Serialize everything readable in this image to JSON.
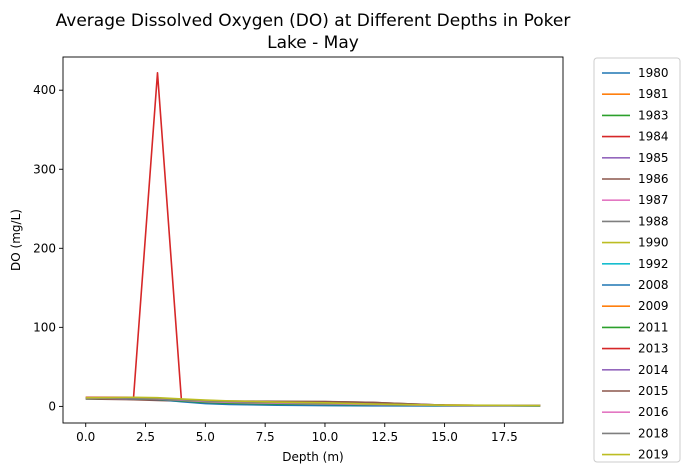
{
  "chart_data": {
    "type": "line",
    "title_lines": [
      "Average Dissolved Oxygen (DO) at Different Depths in Poker",
      "Lake - May"
    ],
    "xlabel": "Depth (m)",
    "ylabel": "DO (mg/L)",
    "xlim": [
      -0.95,
      19.95
    ],
    "ylim": [
      -21,
      442
    ],
    "xticks": [
      0.0,
      2.5,
      5.0,
      7.5,
      10.0,
      12.5,
      15.0,
      17.5
    ],
    "xtick_labels": [
      "0.0",
      "2.5",
      "5.0",
      "7.5",
      "10.0",
      "12.5",
      "15.0",
      "17.5"
    ],
    "yticks": [
      0,
      100,
      200,
      300,
      400
    ],
    "ytick_labels": [
      "0",
      "100",
      "200",
      "300",
      "400"
    ],
    "grid": false,
    "legend_position": "outside-right",
    "series": [
      {
        "name": "1980",
        "color": "#1f77b4",
        "x": [
          0,
          1,
          2,
          3,
          4,
          5,
          6,
          8,
          10,
          12,
          15,
          19
        ],
        "y": [
          10.5,
          10.2,
          9.8,
          9.0,
          6.5,
          4.0,
          3.0,
          2.0,
          1.5,
          1.2,
          1.0,
          0.8
        ]
      },
      {
        "name": "1981",
        "color": "#ff7f0e",
        "x": [
          0,
          1,
          2,
          3,
          4,
          5,
          6,
          8,
          10,
          12,
          15,
          19
        ],
        "y": [
          11.0,
          10.8,
          10.5,
          10.0,
          8.5,
          7.0,
          6.0,
          5.0,
          4.0,
          3.0,
          1.5,
          1.0
        ]
      },
      {
        "name": "1983",
        "color": "#2ca02c",
        "x": [
          0,
          1,
          2,
          3,
          4,
          5,
          6,
          8,
          10,
          12,
          15,
          19
        ],
        "y": [
          10.0,
          9.8,
          9.5,
          9.0,
          7.0,
          5.0,
          4.0,
          3.0,
          2.5,
          2.0,
          1.2,
          0.8
        ]
      },
      {
        "name": "1984",
        "color": "#d62728",
        "x": [
          0,
          1,
          2,
          3,
          4,
          5,
          6,
          8,
          10,
          12,
          15,
          19
        ],
        "y": [
          10.2,
          10.0,
          9.7,
          9.2,
          7.5,
          5.5,
          4.5,
          3.5,
          2.8,
          2.0,
          1.3,
          0.9
        ]
      },
      {
        "name": "1985",
        "color": "#9467bd",
        "x": [
          0,
          1,
          2,
          3,
          4,
          5,
          6,
          8,
          10,
          12,
          15,
          19
        ],
        "y": [
          10.8,
          10.5,
          10.2,
          9.8,
          8.0,
          6.5,
          5.5,
          4.5,
          3.5,
          2.5,
          1.4,
          1.0
        ]
      },
      {
        "name": "1986",
        "color": "#8c564b",
        "x": [
          0,
          1,
          2,
          3,
          4,
          5,
          6,
          8,
          10,
          12,
          15,
          19
        ],
        "y": [
          9.5,
          9.0,
          8.5,
          7.5,
          6.8,
          6.5,
          6.5,
          6.0,
          6.0,
          5.0,
          1.5,
          1.0
        ]
      },
      {
        "name": "1987",
        "color": "#e377c2",
        "x": [
          0,
          1,
          2,
          3,
          4,
          5,
          6,
          8,
          10,
          12,
          15,
          19
        ],
        "y": [
          10.4,
          10.1,
          9.9,
          9.4,
          7.8,
          6.0,
          5.0,
          4.0,
          3.2,
          2.4,
          1.3,
          0.9
        ]
      },
      {
        "name": "1988",
        "color": "#7f7f7f",
        "x": [
          0,
          1,
          2,
          3,
          4,
          5,
          6,
          8,
          10,
          12,
          15,
          19
        ],
        "y": [
          10.6,
          10.3,
          10.0,
          9.6,
          8.2,
          6.8,
          5.8,
          4.8,
          3.8,
          2.8,
          1.5,
          1.1
        ]
      },
      {
        "name": "1990",
        "color": "#bcbd22",
        "x": [
          0,
          1,
          2,
          3,
          4,
          5,
          6,
          8,
          10,
          12,
          15,
          19
        ],
        "y": [
          11.2,
          11.0,
          10.8,
          10.4,
          9.0,
          7.5,
          6.5,
          5.5,
          4.5,
          3.2,
          1.6,
          1.2
        ]
      },
      {
        "name": "1992",
        "color": "#17becf",
        "x": [
          0,
          1,
          2,
          3,
          4,
          5,
          6,
          8,
          10,
          12,
          15,
          19
        ],
        "y": [
          10.3,
          10.0,
          9.8,
          9.3,
          7.6,
          5.8,
          4.8,
          3.8,
          3.0,
          2.2,
          1.3,
          0.9
        ]
      },
      {
        "name": "2008",
        "color": "#1f77b4",
        "x": [
          0,
          1,
          2,
          3,
          4,
          5,
          6,
          8,
          10,
          12,
          15,
          19
        ],
        "y": [
          10.0,
          9.7,
          9.4,
          8.8,
          6.0,
          3.5,
          2.5,
          1.5,
          1.0,
          0.8,
          0.6,
          0.5
        ]
      },
      {
        "name": "2009",
        "color": "#ff7f0e",
        "x": [
          0,
          1,
          2,
          3,
          4,
          5,
          6,
          8,
          10,
          12,
          15,
          19
        ],
        "y": [
          10.9,
          10.6,
          10.3,
          9.9,
          8.4,
          6.9,
          5.9,
          4.9,
          3.9,
          2.9,
          1.5,
          1.0
        ]
      },
      {
        "name": "2011",
        "color": "#2ca02c",
        "x": [
          0,
          1,
          2,
          3,
          4,
          5,
          6,
          8,
          10,
          12,
          15,
          19
        ],
        "y": [
          10.1,
          9.9,
          9.6,
          9.1,
          7.1,
          5.1,
          4.1,
          3.1,
          2.6,
          2.1,
          1.2,
          0.8
        ]
      },
      {
        "name": "2013",
        "color": "#d62728",
        "x": [
          0,
          1,
          2,
          3,
          4,
          5,
          6,
          8,
          10,
          12,
          15,
          19
        ],
        "y": [
          11.5,
          11.5,
          11.5,
          422.0,
          8.0,
          7.0,
          6.0,
          5.0,
          4.0,
          3.0,
          1.5,
          1.0
        ]
      },
      {
        "name": "2014",
        "color": "#9467bd",
        "x": [
          0,
          1,
          2,
          3,
          4,
          5,
          6,
          8,
          10,
          12,
          15,
          19
        ],
        "y": [
          10.7,
          10.4,
          10.1,
          9.7,
          8.1,
          6.6,
          5.6,
          4.6,
          3.6,
          2.6,
          1.4,
          1.0
        ]
      },
      {
        "name": "2015",
        "color": "#8c564b",
        "x": [
          0,
          1,
          2,
          3,
          4,
          5,
          6,
          8,
          10,
          12,
          15,
          19
        ],
        "y": [
          10.2,
          9.9,
          9.7,
          9.2,
          7.8,
          7.0,
          6.8,
          6.5,
          6.2,
          5.0,
          1.5,
          1.0
        ]
      },
      {
        "name": "2016",
        "color": "#e377c2",
        "x": [
          0,
          1,
          2,
          3,
          4,
          5,
          6,
          8,
          10,
          12,
          15,
          19
        ],
        "y": [
          10.5,
          10.2,
          9.9,
          9.5,
          7.9,
          6.1,
          5.1,
          4.1,
          3.3,
          2.5,
          1.3,
          0.9
        ]
      },
      {
        "name": "2018",
        "color": "#7f7f7f",
        "x": [
          0,
          1,
          2,
          3,
          4,
          5,
          6,
          8,
          10,
          12,
          15,
          19
        ],
        "y": [
          10.6,
          10.3,
          10.0,
          9.6,
          8.3,
          6.9,
          5.9,
          4.9,
          3.9,
          2.9,
          1.5,
          1.1
        ]
      },
      {
        "name": "2019",
        "color": "#bcbd22",
        "x": [
          0,
          1,
          2,
          3,
          4,
          5,
          6,
          8,
          10,
          12,
          15,
          19
        ],
        "y": [
          11.0,
          11.2,
          11.5,
          11.0,
          9.5,
          8.0,
          7.0,
          5.5,
          4.5,
          3.0,
          1.5,
          1.0
        ]
      }
    ]
  }
}
